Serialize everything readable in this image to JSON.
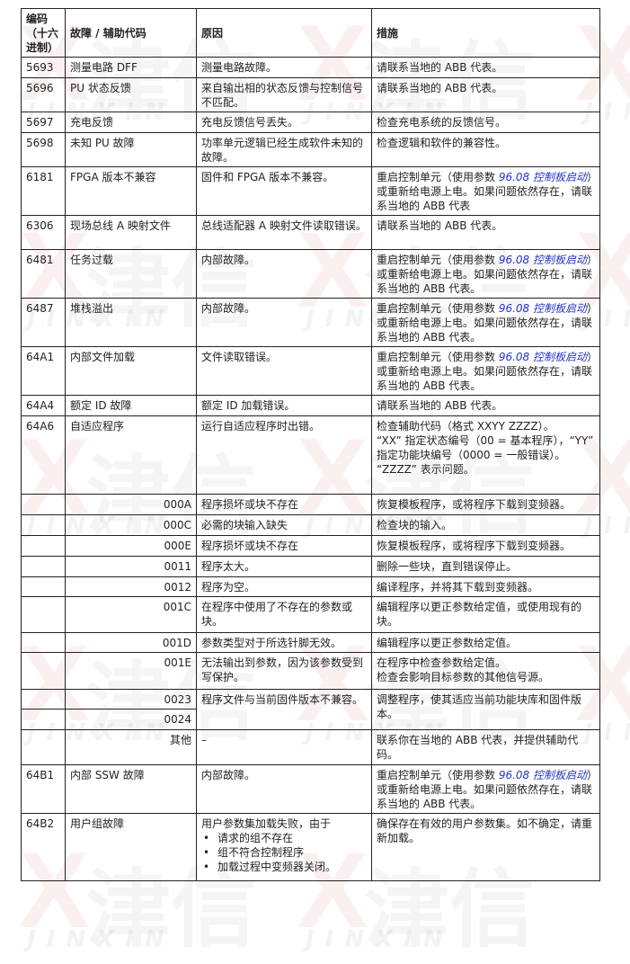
{
  "watermark": {
    "logo_cn": "津信",
    "logo_en": "JINXIN",
    "color": "#c82828"
  },
  "table": {
    "headers": {
      "code": "编码（十六进制）",
      "fault": "故障 / 辅助代码",
      "cause": "原因",
      "action": "措施"
    },
    "rows": [
      {
        "code": "5693",
        "fault": "测量电路 DFF",
        "cause": [
          "测量电路故障。"
        ],
        "action": [
          [
            {
              "text": "请联系当地的 ABB 代表。"
            }
          ]
        ]
      },
      {
        "code": "5696",
        "fault": "PU 状态反馈",
        "cause": [
          "来自输出相的状态反馈与控制信号不匹配。"
        ],
        "action": [
          [
            {
              "text": "请联系当地的 ABB 代表。"
            }
          ]
        ]
      },
      {
        "code": "5697",
        "fault": "充电反馈",
        "cause": [
          "充电反馈信号丢失。"
        ],
        "action": [
          [
            {
              "text": "检查充电系统的反馈信号。"
            }
          ]
        ]
      },
      {
        "code": "5698",
        "fault": "未知 PU 故障",
        "cause": [
          "功率单元逻辑已经生成软件未知的故障。"
        ],
        "action": [
          [
            {
              "text": "检查逻辑和软件的兼容性。"
            }
          ]
        ]
      },
      {
        "code": "6181",
        "fault": "FPGA 版本不兼容",
        "cause": [
          "固件和 FPGA 版本不兼容。"
        ],
        "action": [
          [
            {
              "text": "重启控制单元（使用参数 "
            },
            {
              "text": "96.08 控制板启动",
              "link": true
            },
            {
              "text": "）或重新给电源上电。如果问题依然存在，请联系当地的 ABB 代表"
            }
          ]
        ]
      },
      {
        "code": "6306",
        "fault": "现场总线 A 映射文件",
        "cause": [
          "总线适配器 A 映射文件读取错误。"
        ],
        "action": [
          [
            {
              "text": "请联系当地的 ABB 代表。"
            }
          ]
        ]
      },
      {
        "code": "6481",
        "fault": "任务过载",
        "cause": [
          "内部故障。"
        ],
        "action": [
          [
            {
              "text": "重启控制单元（使用参数 "
            },
            {
              "text": "96.08 控制板启动",
              "link": true
            },
            {
              "text": "）或重新给电源上电。如果问题依然存在，请联系当地的 ABB 代表。"
            }
          ]
        ]
      },
      {
        "code": "6487",
        "fault": "堆栈溢出",
        "cause": [
          "内部故障。"
        ],
        "action": [
          [
            {
              "text": "重启控制单元（使用参数 "
            },
            {
              "text": "96.08 控制板启动",
              "link": true
            },
            {
              "text": "）或重新给电源上电。如果问题依然存在，请联系当地的 ABB 代表。"
            }
          ]
        ]
      },
      {
        "code": "64A1",
        "fault": "内部文件加载",
        "cause": [
          "文件读取错误。"
        ],
        "action": [
          [
            {
              "text": "重启控制单元（使用参数 "
            },
            {
              "text": "96.08 控制板启动",
              "link": true
            },
            {
              "text": "）或重新给电源上电。如果问题依然存在，请联系当地的 ABB 代表。"
            }
          ]
        ]
      },
      {
        "code": "64A4",
        "fault": "额定 ID 故障",
        "cause": [
          "额定 ID 加载错误。"
        ],
        "action": [
          [
            {
              "text": "请联系当地的 ABB 代表。"
            }
          ]
        ]
      },
      {
        "code": "64A6",
        "fault": "自适应程序",
        "cause": [
          "运行自适应程序时出错。"
        ],
        "action": [
          [
            {
              "text": "检查辅助代码（格式 XXYY ZZZZ）。"
            }
          ],
          [
            {
              "text": "“XX” 指定状态编号（00 = 基本程序），“YY” 指定功能块编号（0000 = 一般错误）。"
            }
          ],
          [
            {
              "text": "“ZZZZ” 表示问题。"
            }
          ]
        ]
      },
      {
        "code": "",
        "fault": "000A",
        "sub": true,
        "cause": [
          "程序损坏或块不存在"
        ],
        "action": [
          [
            {
              "text": "恢复模板程序，或将程序下载到变频器。"
            }
          ]
        ]
      },
      {
        "code": "",
        "fault": "000C",
        "sub": true,
        "cause": [
          "必需的块输入缺失"
        ],
        "action": [
          [
            {
              "text": "检查块的输入。"
            }
          ]
        ]
      },
      {
        "code": "",
        "fault": "000E",
        "sub": true,
        "cause": [
          "程序损坏或块不存在"
        ],
        "action": [
          [
            {
              "text": "恢复模板程序，或将程序下载到变频器。"
            }
          ]
        ]
      },
      {
        "code": "",
        "fault": "0011",
        "sub": true,
        "cause": [
          "程序太大。"
        ],
        "action": [
          [
            {
              "text": "删除一些块，直到错误停止。"
            }
          ]
        ]
      },
      {
        "code": "",
        "fault": "0012",
        "sub": true,
        "cause": [
          "程序为空。"
        ],
        "action": [
          [
            {
              "text": "编译程序，并将其下载到变频器。"
            }
          ]
        ]
      },
      {
        "code": "",
        "fault": "001C",
        "sub": true,
        "cause": [
          "在程序中使用了不存在的参数或块。"
        ],
        "action": [
          [
            {
              "text": "编辑程序以更正参数给定值，或使用现有的块。"
            }
          ]
        ]
      },
      {
        "code": "",
        "fault": "001D",
        "sub": true,
        "cause": [
          "参数类型对于所选针脚无效。"
        ],
        "action": [
          [
            {
              "text": "编辑程序以更正参数给定值。"
            }
          ]
        ]
      },
      {
        "code": "",
        "fault": "001E",
        "sub": true,
        "cause": [
          "无法输出到参数，因为该参数受到写保护。"
        ],
        "action": [
          [
            {
              "text": "在程序中检查参数给定值。"
            }
          ],
          [
            {
              "text": "检查会影响目标参数的其他信号源。"
            }
          ]
        ]
      },
      {
        "code": "",
        "fault": "0023",
        "sub": true,
        "span": 2,
        "cause": [
          "程序文件与当前固件版本不兼容。"
        ],
        "action": [
          [
            {
              "text": "调整程序，使其适应当前功能块库和固件版本。"
            }
          ]
        ]
      },
      {
        "code": "",
        "fault": "0024",
        "sub": true,
        "spanned": true
      },
      {
        "code": "",
        "fault": "其他",
        "sub": true,
        "cause": [
          "–"
        ],
        "action": [
          [
            {
              "text": "联系你在当地的 ABB 代表，并提供辅助代码。"
            }
          ]
        ]
      },
      {
        "code": "64B1",
        "fault": "内部 SSW 故障",
        "cause": [
          "内部故障。"
        ],
        "action": [
          [
            {
              "text": "重启控制单元（使用参数 "
            },
            {
              "text": "96.08 控制板启动",
              "link": true
            },
            {
              "text": "）或重新给电源上电。如果问题依然存在，请联系当地的 ABB 代表。"
            }
          ]
        ]
      },
      {
        "code": "64B2",
        "fault": "用户组故障",
        "cause": [
          "用户参数集加载失败，由于"
        ],
        "bullets": [
          "请求的组不存在",
          "组不符合控制程序",
          "加载过程中变频器关闭。"
        ],
        "action": [
          [
            {
              "text": "确保存在有效的用户参数集。如不确定，请重新加载。"
            }
          ]
        ]
      }
    ]
  }
}
